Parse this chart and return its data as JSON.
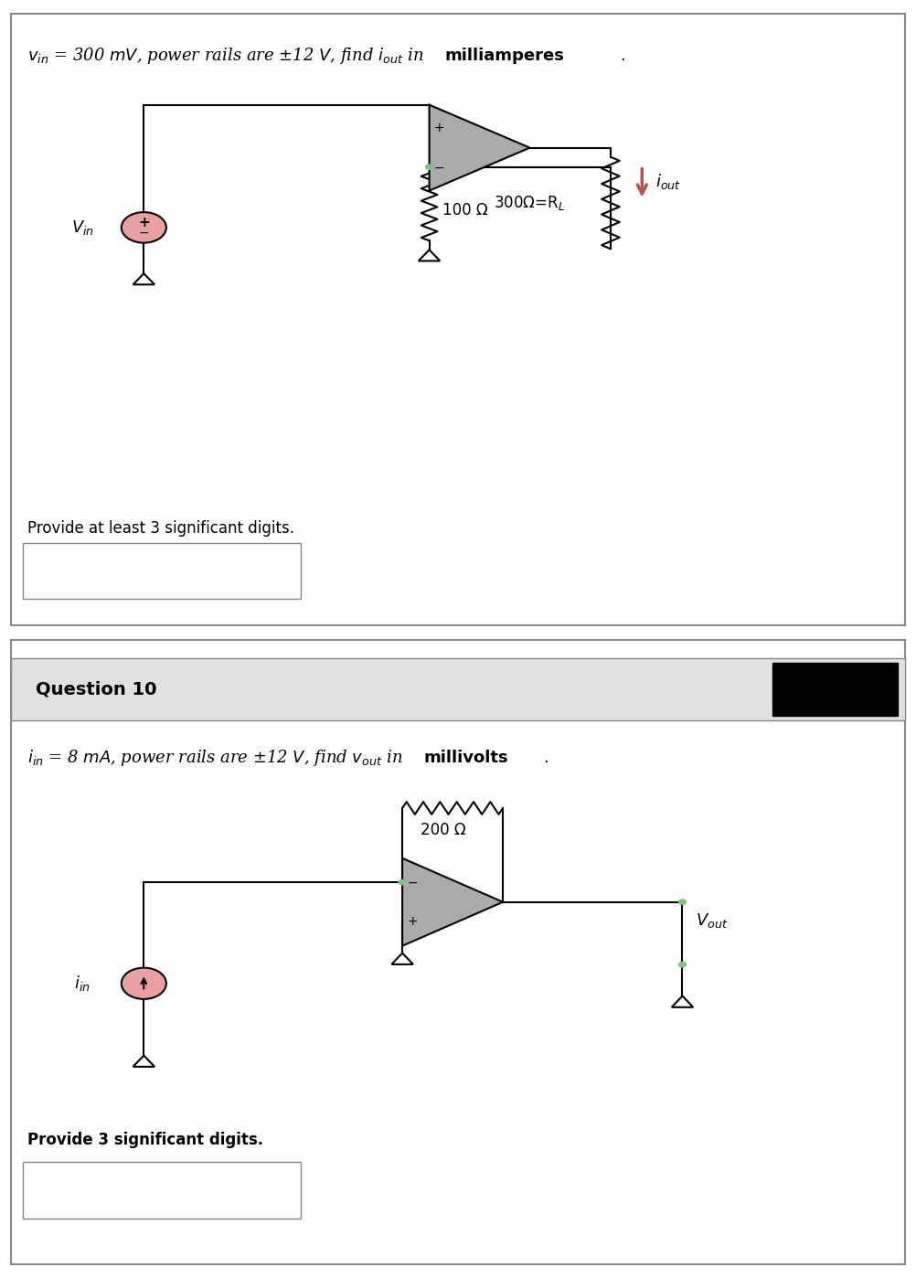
{
  "bg_color": "#f0f0f0",
  "white": "#ffffff",
  "black": "#000000",
  "gray_op": "#a0a0a0",
  "op_fill": "#b0b0b0",
  "op_fill2": "#909090",
  "pink_fill": "#e8a0a0",
  "pink_dark": "#c06060",
  "green_node": "#80c080",
  "red_arrow": "#d06060",
  "q9_title": "$v_{in}$ = 300 $mV$, power rails are $\\pm$12 $V$, find $i_{out}$ in ",
  "q9_title_bold": "milliamperes",
  "q9_title_end": ".",
  "q9_provide": "Provide at least 3 significant digits.",
  "q10_header": "Question 10",
  "q10_title": "$i_{in}$ = 8 $mA$, power rails are $\\pm$12 $V$, find $v_{out}$ in ",
  "q10_title_bold": "millivolts",
  "q10_title_end": ".",
  "q10_provide": "Provide 3 significant digits.",
  "res300_label": "300Ω=R",
  "res100_label": "100 Ω",
  "res200_label": "200 Ω",
  "iout_label": "i",
  "iout_sub": "out",
  "vout_label": "V",
  "vout_sub": "out",
  "vin_label": "V",
  "vin_sub": "in",
  "iin_label": "i",
  "iin_sub": "in"
}
